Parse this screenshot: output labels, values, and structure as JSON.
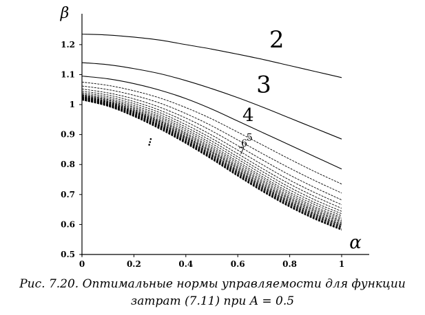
{
  "chart_data": {
    "type": "line",
    "xlabel": "α",
    "ylabel": "β",
    "xlim": [
      0,
      1
    ],
    "ylim": [
      0.5,
      1.28
    ],
    "x_ticks": [
      "0",
      "0.2",
      "0.4",
      "0.6",
      "0.8",
      "1"
    ],
    "y_ticks": [
      "0.5",
      "0.6",
      "0.7",
      "0.8",
      "0.9",
      "1",
      "1.1",
      "1.2"
    ],
    "grid": false,
    "legend": "none",
    "x": [
      0,
      0.1,
      0.2,
      0.3,
      0.4,
      0.5,
      0.6,
      0.7,
      0.8,
      0.9,
      1.0
    ],
    "series": [
      {
        "name": "2",
        "values": [
          1.235,
          1.232,
          1.225,
          1.215,
          1.2,
          1.185,
          1.168,
          1.15,
          1.13,
          1.11,
          1.09
        ]
      },
      {
        "name": "3",
        "values": [
          1.14,
          1.133,
          1.12,
          1.103,
          1.08,
          1.053,
          1.023,
          0.99,
          0.955,
          0.92,
          0.885
        ]
      },
      {
        "name": "4",
        "values": [
          1.095,
          1.086,
          1.07,
          1.048,
          1.02,
          0.985,
          0.945,
          0.905,
          0.865,
          0.825,
          0.785
        ]
      },
      {
        "name": "5",
        "values": [
          1.075,
          1.064,
          1.046,
          1.022,
          0.99,
          0.952,
          0.908,
          0.863,
          0.818,
          0.775,
          0.735
        ]
      },
      {
        "name": "6",
        "values": [
          1.062,
          1.05,
          1.031,
          1.005,
          0.97,
          0.929,
          0.882,
          0.834,
          0.788,
          0.745,
          0.705
        ]
      },
      {
        "name": "7",
        "values": [
          1.052,
          1.039,
          1.019,
          0.991,
          0.955,
          0.912,
          0.863,
          0.813,
          0.765,
          0.722,
          0.682
        ]
      },
      {
        "name": "",
        "values": [
          1.045,
          1.032,
          1.01,
          0.981,
          0.943,
          0.898,
          0.848,
          0.797,
          0.748,
          0.705,
          0.666
        ]
      },
      {
        "name": "",
        "values": [
          1.04,
          1.026,
          1.003,
          0.973,
          0.933,
          0.887,
          0.836,
          0.784,
          0.735,
          0.692,
          0.654
        ]
      },
      {
        "name": "",
        "values": [
          1.036,
          1.021,
          0.997,
          0.966,
          0.925,
          0.878,
          0.826,
          0.774,
          0.724,
          0.681,
          0.644
        ]
      },
      {
        "name": "",
        "values": [
          1.033,
          1.017,
          0.992,
          0.96,
          0.918,
          0.87,
          0.818,
          0.765,
          0.715,
          0.672,
          0.636
        ]
      },
      {
        "name": "",
        "values": [
          1.031,
          1.014,
          0.988,
          0.955,
          0.912,
          0.863,
          0.81,
          0.757,
          0.707,
          0.665,
          0.629
        ]
      },
      {
        "name": "",
        "values": [
          1.029,
          1.011,
          0.984,
          0.95,
          0.906,
          0.857,
          0.804,
          0.751,
          0.701,
          0.658,
          0.623
        ]
      },
      {
        "name": "",
        "values": [
          1.027,
          1.009,
          0.981,
          0.946,
          0.902,
          0.852,
          0.798,
          0.745,
          0.695,
          0.653,
          0.618
        ]
      },
      {
        "name": "",
        "values": [
          1.026,
          1.007,
          0.978,
          0.943,
          0.898,
          0.847,
          0.793,
          0.74,
          0.69,
          0.648,
          0.613
        ]
      },
      {
        "name": "",
        "values": [
          1.025,
          1.005,
          0.976,
          0.94,
          0.894,
          0.843,
          0.789,
          0.735,
          0.686,
          0.644,
          0.609
        ]
      },
      {
        "name": "",
        "values": [
          1.024,
          1.004,
          0.974,
          0.937,
          0.891,
          0.84,
          0.785,
          0.731,
          0.682,
          0.64,
          0.605
        ]
      },
      {
        "name": "",
        "values": [
          1.023,
          1.002,
          0.972,
          0.935,
          0.888,
          0.836,
          0.781,
          0.727,
          0.678,
          0.636,
          0.601
        ]
      },
      {
        "name": "",
        "values": [
          1.022,
          1.001,
          0.97,
          0.932,
          0.885,
          0.833,
          0.778,
          0.724,
          0.675,
          0.633,
          0.598
        ]
      },
      {
        "name": "",
        "values": [
          1.021,
          1.0,
          0.968,
          0.93,
          0.883,
          0.83,
          0.775,
          0.721,
          0.672,
          0.63,
          0.595
        ]
      },
      {
        "name": "",
        "values": [
          1.02,
          0.999,
          0.967,
          0.928,
          0.88,
          0.828,
          0.772,
          0.718,
          0.669,
          0.627,
          0.592
        ]
      },
      {
        "name": "",
        "values": [
          1.019,
          0.998,
          0.965,
          0.926,
          0.878,
          0.825,
          0.77,
          0.716,
          0.667,
          0.625,
          0.59
        ]
      },
      {
        "name": "",
        "values": [
          1.018,
          0.997,
          0.964,
          0.924,
          0.876,
          0.823,
          0.767,
          0.713,
          0.664,
          0.622,
          0.587
        ]
      },
      {
        "name": "",
        "values": [
          1.017,
          0.996,
          0.962,
          0.922,
          0.874,
          0.821,
          0.765,
          0.711,
          0.662,
          0.62,
          0.585
        ]
      },
      {
        "name": "",
        "values": [
          1.016,
          0.995,
          0.961,
          0.92,
          0.872,
          0.819,
          0.763,
          0.709,
          0.66,
          0.618,
          0.583
        ]
      },
      {
        "name": "",
        "values": [
          1.015,
          0.994,
          0.96,
          0.918,
          0.87,
          0.817,
          0.761,
          0.707,
          0.658,
          0.616,
          0.581
        ]
      }
    ],
    "annotations": [
      {
        "text": "2",
        "x": 0.75,
        "y": 1.19,
        "size": "large"
      },
      {
        "text": "3",
        "x": 0.7,
        "y": 1.04,
        "size": "large"
      },
      {
        "text": "4",
        "x": 0.64,
        "y": 0.945,
        "size": "medium"
      },
      {
        "text": "5",
        "x": 0.645,
        "y": 0.88,
        "size": "small"
      },
      {
        "text": "6",
        "x": 0.625,
        "y": 0.86,
        "size": "small"
      },
      {
        "text": "7",
        "x": 0.615,
        "y": 0.835,
        "size": "small"
      }
    ]
  },
  "caption": {
    "line1": "Рис. 7.20. Оптимальные нормы управляемости для функции",
    "line2": "затрат (7.11) при A = 0.5"
  },
  "colors": {
    "ink": "#000000",
    "background": "#ffffff"
  }
}
